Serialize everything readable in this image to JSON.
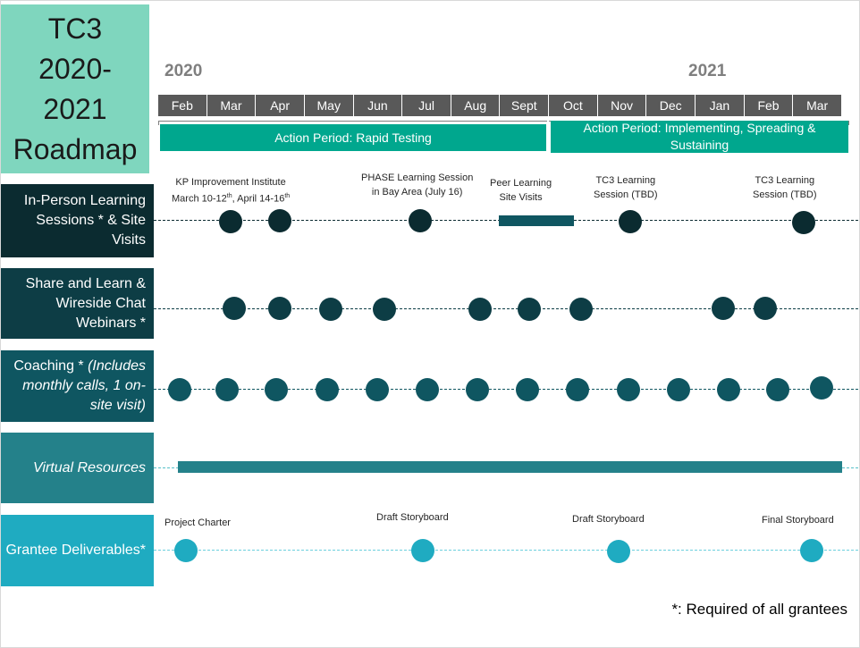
{
  "title": {
    "line1": "TC3",
    "line2": "2020-",
    "line3": "2021",
    "line4": "Roadmap"
  },
  "years": {
    "y2020": "2020",
    "y2021": "2021"
  },
  "months": [
    "Feb",
    "Mar",
    "Apr",
    "May",
    "Jun",
    "Jul",
    "Aug",
    "Sept",
    "Oct",
    "Nov",
    "Dec",
    "Jan",
    "Feb",
    "Mar"
  ],
  "periods": {
    "rapid_testing": "Action Period: Rapid Testing",
    "implementing": "Action Period: Implementing, Spreading & Sustaining"
  },
  "rows": {
    "in_person": {
      "label": "In-Person Learning Sessions * & Site Visits",
      "color": "#0b2b30"
    },
    "share_learn": {
      "label": "Share and Learn & Wireside Chat Webinars *",
      "color": "#0d3d45"
    },
    "coaching": {
      "label_plain": "Coaching * ",
      "label_italic": "(Includes monthly calls, 1 on-site visit)",
      "color": "#0f5661"
    },
    "virtual": {
      "label": "Virtual Resources",
      "color": "#24818a"
    },
    "deliverables": {
      "label": "Grantee Deliverables*",
      "color": "#1fabc1"
    }
  },
  "annotations": {
    "kp_institute_line1": "KP Improvement Institute",
    "kp_institute_line2_a": "March 10-12",
    "kp_institute_sup1": "th",
    "kp_institute_line2_b": ", April 14-16",
    "kp_institute_sup2": "th",
    "phase_line1": "PHASE Learning Session",
    "phase_line2": "in Bay Area (July 16)",
    "peer_line1": "Peer Learning",
    "peer_line2": "Site Visits",
    "tc3_nov_line1": "TC3 Learning",
    "tc3_nov_line2": "Session (TBD)",
    "tc3_mar_line1": "TC3 Learning",
    "tc3_mar_line2": "Session (TBD)",
    "project_charter": "Project Charter",
    "draft_storyboard_1": "Draft Storyboard",
    "draft_storyboard_2": "Draft Storyboard",
    "final_storyboard": "Final Storyboard"
  },
  "footnote": "*: Required of all grantees"
}
